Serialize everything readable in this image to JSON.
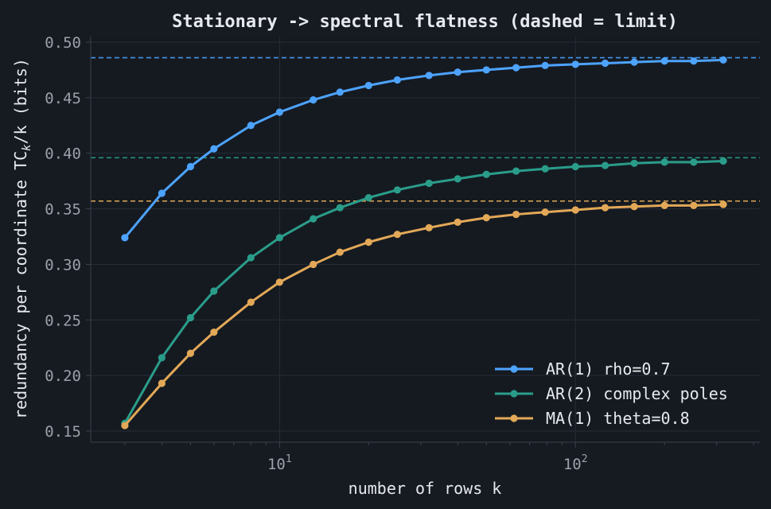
{
  "chart_data": {
    "type": "line",
    "title": "Stationary -> spectral flatness  (dashed = limit)",
    "xlabel": "number of rows  k",
    "ylabel": "redundancy per coordinate  TC_k/k  (bits)",
    "ylabel_parts": {
      "before": "redundancy per coordinate  TC",
      "sub": "k",
      "after": "/k  (bits)"
    },
    "x_scale": "log",
    "xlim": [
      2.3,
      420
    ],
    "ylim": [
      0.14,
      0.505
    ],
    "x_ticks": [
      {
        "value": 10,
        "base": "10",
        "exp": "1"
      },
      {
        "value": 100,
        "base": "10",
        "exp": "2"
      }
    ],
    "y_ticks": [
      "0.15",
      "0.20",
      "0.25",
      "0.30",
      "0.35",
      "0.40",
      "0.45",
      "0.50"
    ],
    "grid": true,
    "legend_position": "bottom-right",
    "series": [
      {
        "name": "AR(1) rho=0.7",
        "color": "#4da3ff",
        "limit": 0.486,
        "x": [
          3,
          4,
          5,
          6,
          8,
          10,
          13,
          16,
          20,
          25,
          32,
          40,
          50,
          63,
          79,
          100,
          126,
          158,
          200,
          251,
          316
        ],
        "y": [
          0.324,
          0.364,
          0.388,
          0.404,
          0.425,
          0.437,
          0.448,
          0.455,
          0.461,
          0.466,
          0.47,
          0.473,
          0.475,
          0.477,
          0.479,
          0.48,
          0.481,
          0.482,
          0.483,
          0.483,
          0.484
        ]
      },
      {
        "name": "AR(2) complex poles",
        "color": "#2a9d8a",
        "limit": 0.396,
        "x": [
          3,
          4,
          5,
          6,
          8,
          10,
          13,
          16,
          20,
          25,
          32,
          40,
          50,
          63,
          79,
          100,
          126,
          158,
          200,
          251,
          316
        ],
        "y": [
          0.157,
          0.216,
          0.252,
          0.276,
          0.306,
          0.324,
          0.341,
          0.351,
          0.36,
          0.367,
          0.373,
          0.377,
          0.381,
          0.384,
          0.386,
          0.388,
          0.389,
          0.391,
          0.392,
          0.392,
          0.393
        ]
      },
      {
        "name": "MA(1) theta=0.8",
        "color": "#e3a857",
        "limit": 0.357,
        "x": [
          3,
          4,
          5,
          6,
          8,
          10,
          13,
          16,
          20,
          25,
          32,
          40,
          50,
          63,
          79,
          100,
          126,
          158,
          200,
          251,
          316
        ],
        "y": [
          0.155,
          0.193,
          0.22,
          0.239,
          0.266,
          0.284,
          0.3,
          0.311,
          0.32,
          0.327,
          0.333,
          0.338,
          0.342,
          0.345,
          0.347,
          0.349,
          0.351,
          0.352,
          0.353,
          0.353,
          0.354
        ]
      }
    ]
  }
}
